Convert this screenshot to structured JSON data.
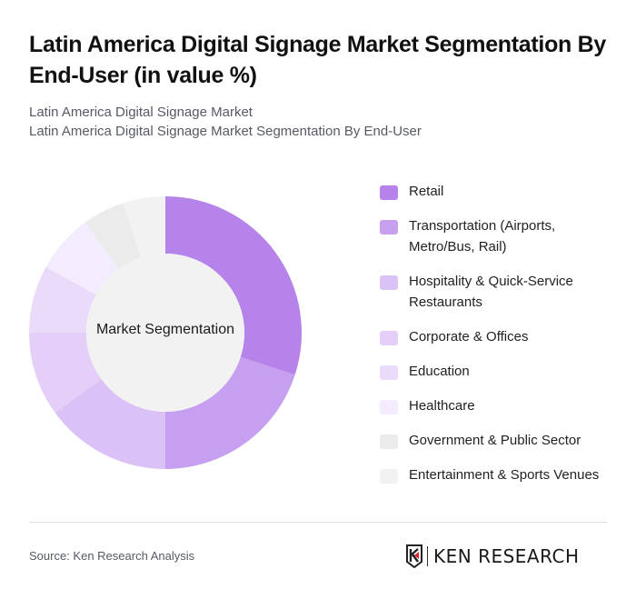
{
  "header": {
    "title": "Latin America Digital Signage Market Segmentation By End-User (in value %)",
    "subtitle_line1": "Latin America Digital Signage Market",
    "subtitle_line2": "Latin America Digital Signage Market Segmentation By End-User"
  },
  "chart_data": {
    "type": "pie",
    "variant": "donut",
    "title": "Latin America Digital Signage Market Segmentation By End-User (in value %)",
    "center_label": "Market Segmentation",
    "legend_position": "right",
    "categories": [
      "Retail",
      "Transportation (Airports, Metro/Bus, Rail)",
      "Hospitality & Quick-Service Restaurants",
      "Corporate & Offices",
      "Education",
      "Healthcare",
      "Government & Public Sector",
      "Entertainment & Sports Venues"
    ],
    "values": [
      30,
      20,
      15,
      10,
      8,
      7,
      5,
      5
    ],
    "colors": [
      "#b583ea",
      "#c69ff0",
      "#dbc2f6",
      "#e3cff7",
      "#e9dbf9",
      "#f3ecfc",
      "#ebebeb",
      "#f2f2f2"
    ],
    "unit": "%"
  },
  "legend": {
    "items": [
      {
        "label": "Retail",
        "color": "#b583ea"
      },
      {
        "label": "Transportation (Airports, Metro/Bus, Rail)",
        "color": "#c69ff0"
      },
      {
        "label": "Hospitality & Quick-Service Restaurants",
        "color": "#dbc2f6"
      },
      {
        "label": "Corporate & Offices",
        "color": "#e3cff7"
      },
      {
        "label": "Education",
        "color": "#e9dbf9"
      },
      {
        "label": "Healthcare",
        "color": "#f3ecfc"
      },
      {
        "label": "Government & Public Sector",
        "color": "#ebebeb"
      },
      {
        "label": "Entertainment & Sports Venues",
        "color": "#f2f2f2"
      }
    ]
  },
  "footer": {
    "source": "Source: Ken Research Analysis",
    "logo_text": "KEN RESEARCH"
  }
}
